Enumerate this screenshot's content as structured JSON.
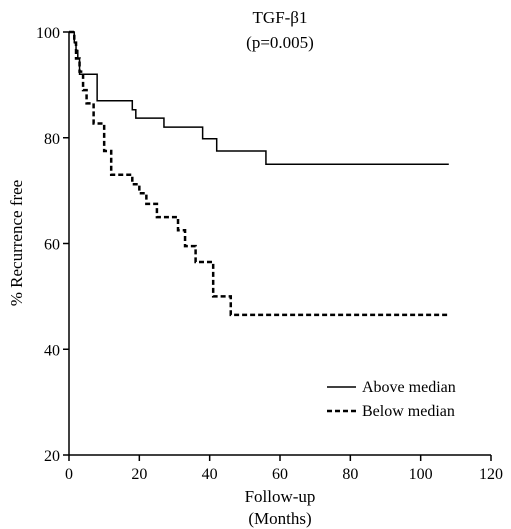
{
  "chart_data": {
    "type": "line",
    "subtype": "kaplan-meier step curves",
    "title": "TGF-β1",
    "subtitle": "(p=0.005)",
    "xlabel_line1": "Follow-up",
    "xlabel_line2": "(Months)",
    "ylabel": "% Recurrence free",
    "xlim": [
      0,
      120
    ],
    "ylim": [
      20,
      100
    ],
    "xticks": [
      0,
      20,
      40,
      60,
      80,
      100,
      120
    ],
    "yticks": [
      20,
      40,
      60,
      80,
      100
    ],
    "grid": false,
    "legend_position": "bottom-right",
    "series": [
      {
        "name": "Above median",
        "style": "solid",
        "color": "#000000",
        "x": [
          0,
          1,
          1.5,
          2,
          2.5,
          3,
          8,
          18,
          19,
          27,
          38,
          42,
          56,
          108
        ],
        "y": [
          100,
          100,
          98,
          96.5,
          95,
          92,
          87,
          85.3,
          83.7,
          82,
          79.8,
          77.5,
          75,
          75
        ]
      },
      {
        "name": "Below median",
        "style": "dashed",
        "color": "#000000",
        "x": [
          0,
          1,
          1.5,
          2,
          3,
          4,
          5,
          7,
          10,
          12,
          18,
          20,
          22,
          25,
          31,
          33,
          36,
          41,
          46,
          108
        ],
        "y": [
          100,
          100,
          98,
          95,
          92.5,
          89,
          86.5,
          82.7,
          77.5,
          73,
          71.2,
          69.5,
          67.5,
          65,
          62.5,
          59.5,
          56.5,
          50,
          46.5,
          46.5
        ]
      }
    ]
  }
}
